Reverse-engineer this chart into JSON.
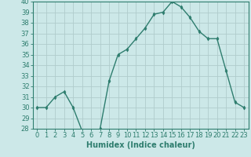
{
  "xlabel": "Humidex (Indice chaleur)",
  "ylabel": "",
  "x": [
    0,
    1,
    2,
    3,
    4,
    5,
    6,
    7,
    8,
    9,
    10,
    11,
    12,
    13,
    14,
    15,
    16,
    17,
    18,
    19,
    20,
    21,
    22,
    23
  ],
  "y": [
    30,
    30,
    31,
    31.5,
    30,
    27.8,
    27.5,
    28,
    32.5,
    35,
    35.5,
    36.5,
    37.5,
    38.8,
    39,
    40,
    39.5,
    38.5,
    37.2,
    36.5,
    36.5,
    33.5,
    30.5,
    30
  ],
  "line_color": "#2e7d6e",
  "marker": "d",
  "marker_size": 2.5,
  "bg_color": "#cce8e8",
  "grid_color": "#b0cccc",
  "ylim": [
    28,
    40
  ],
  "yticks": [
    28,
    29,
    30,
    31,
    32,
    33,
    34,
    35,
    36,
    37,
    38,
    39,
    40
  ],
  "xticks": [
    0,
    1,
    2,
    3,
    4,
    5,
    6,
    7,
    8,
    9,
    10,
    11,
    12,
    13,
    14,
    15,
    16,
    17,
    18,
    19,
    20,
    21,
    22,
    23
  ],
  "tick_label_fontsize": 6,
  "xlabel_fontsize": 7
}
